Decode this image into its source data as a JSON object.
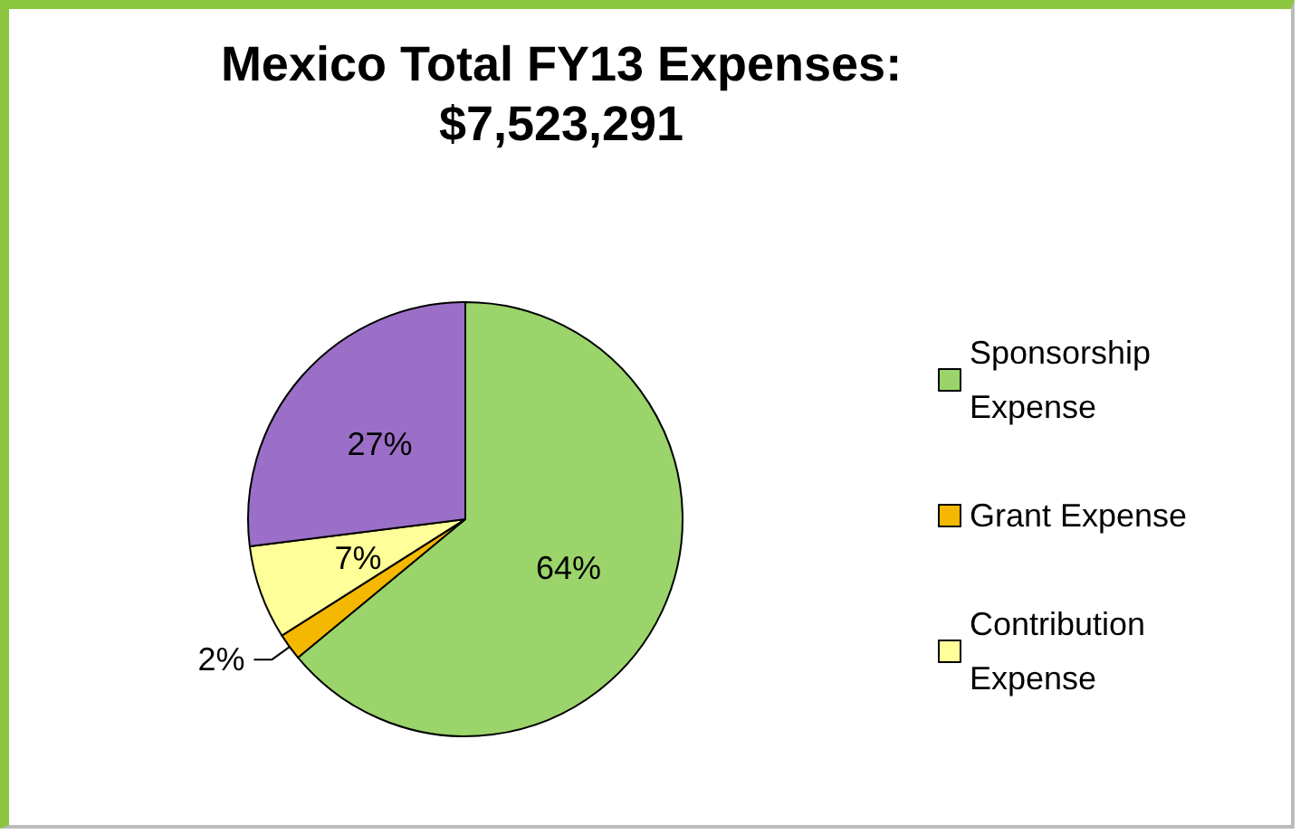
{
  "chart_data": {
    "type": "pie",
    "title": "Mexico Total FY13 Expenses:",
    "subtitle": "$7,523,291",
    "categories": [
      "Sponsorship Expense",
      "Grant Expense",
      "Contribution Expense",
      null
    ],
    "values": [
      64,
      2,
      7,
      27
    ],
    "value_labels": [
      "64%",
      "2%",
      "7%",
      "27%"
    ],
    "colors": [
      "#9bd46a",
      "#f5b800",
      "#ffff99",
      "#9b6fc7"
    ],
    "legend": "right"
  }
}
